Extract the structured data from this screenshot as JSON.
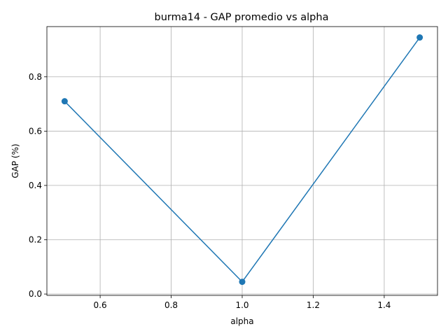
{
  "chart_data": {
    "type": "line",
    "title": "burma14 - GAP promedio vs alpha",
    "xlabel": "alpha",
    "ylabel": "GAP (%)",
    "x": [
      0.5,
      1.0,
      1.5
    ],
    "series": [
      {
        "values": [
          0.71,
          0.045,
          0.945
        ],
        "color": "#1f77b4",
        "marker": "circle"
      }
    ],
    "xlim": [
      0.45,
      1.55
    ],
    "ylim": [
      -0.005,
      0.985
    ],
    "xticks": [
      0.6,
      0.8,
      1.0,
      1.2,
      1.4
    ],
    "xtick_labels": [
      "0.6",
      "0.8",
      "1.0",
      "1.2",
      "1.4"
    ],
    "yticks": [
      0.0,
      0.2,
      0.4,
      0.6,
      0.8
    ],
    "ytick_labels": [
      "0.0",
      "0.2",
      "0.4",
      "0.6",
      "0.8"
    ],
    "grid": true,
    "legend": false
  }
}
